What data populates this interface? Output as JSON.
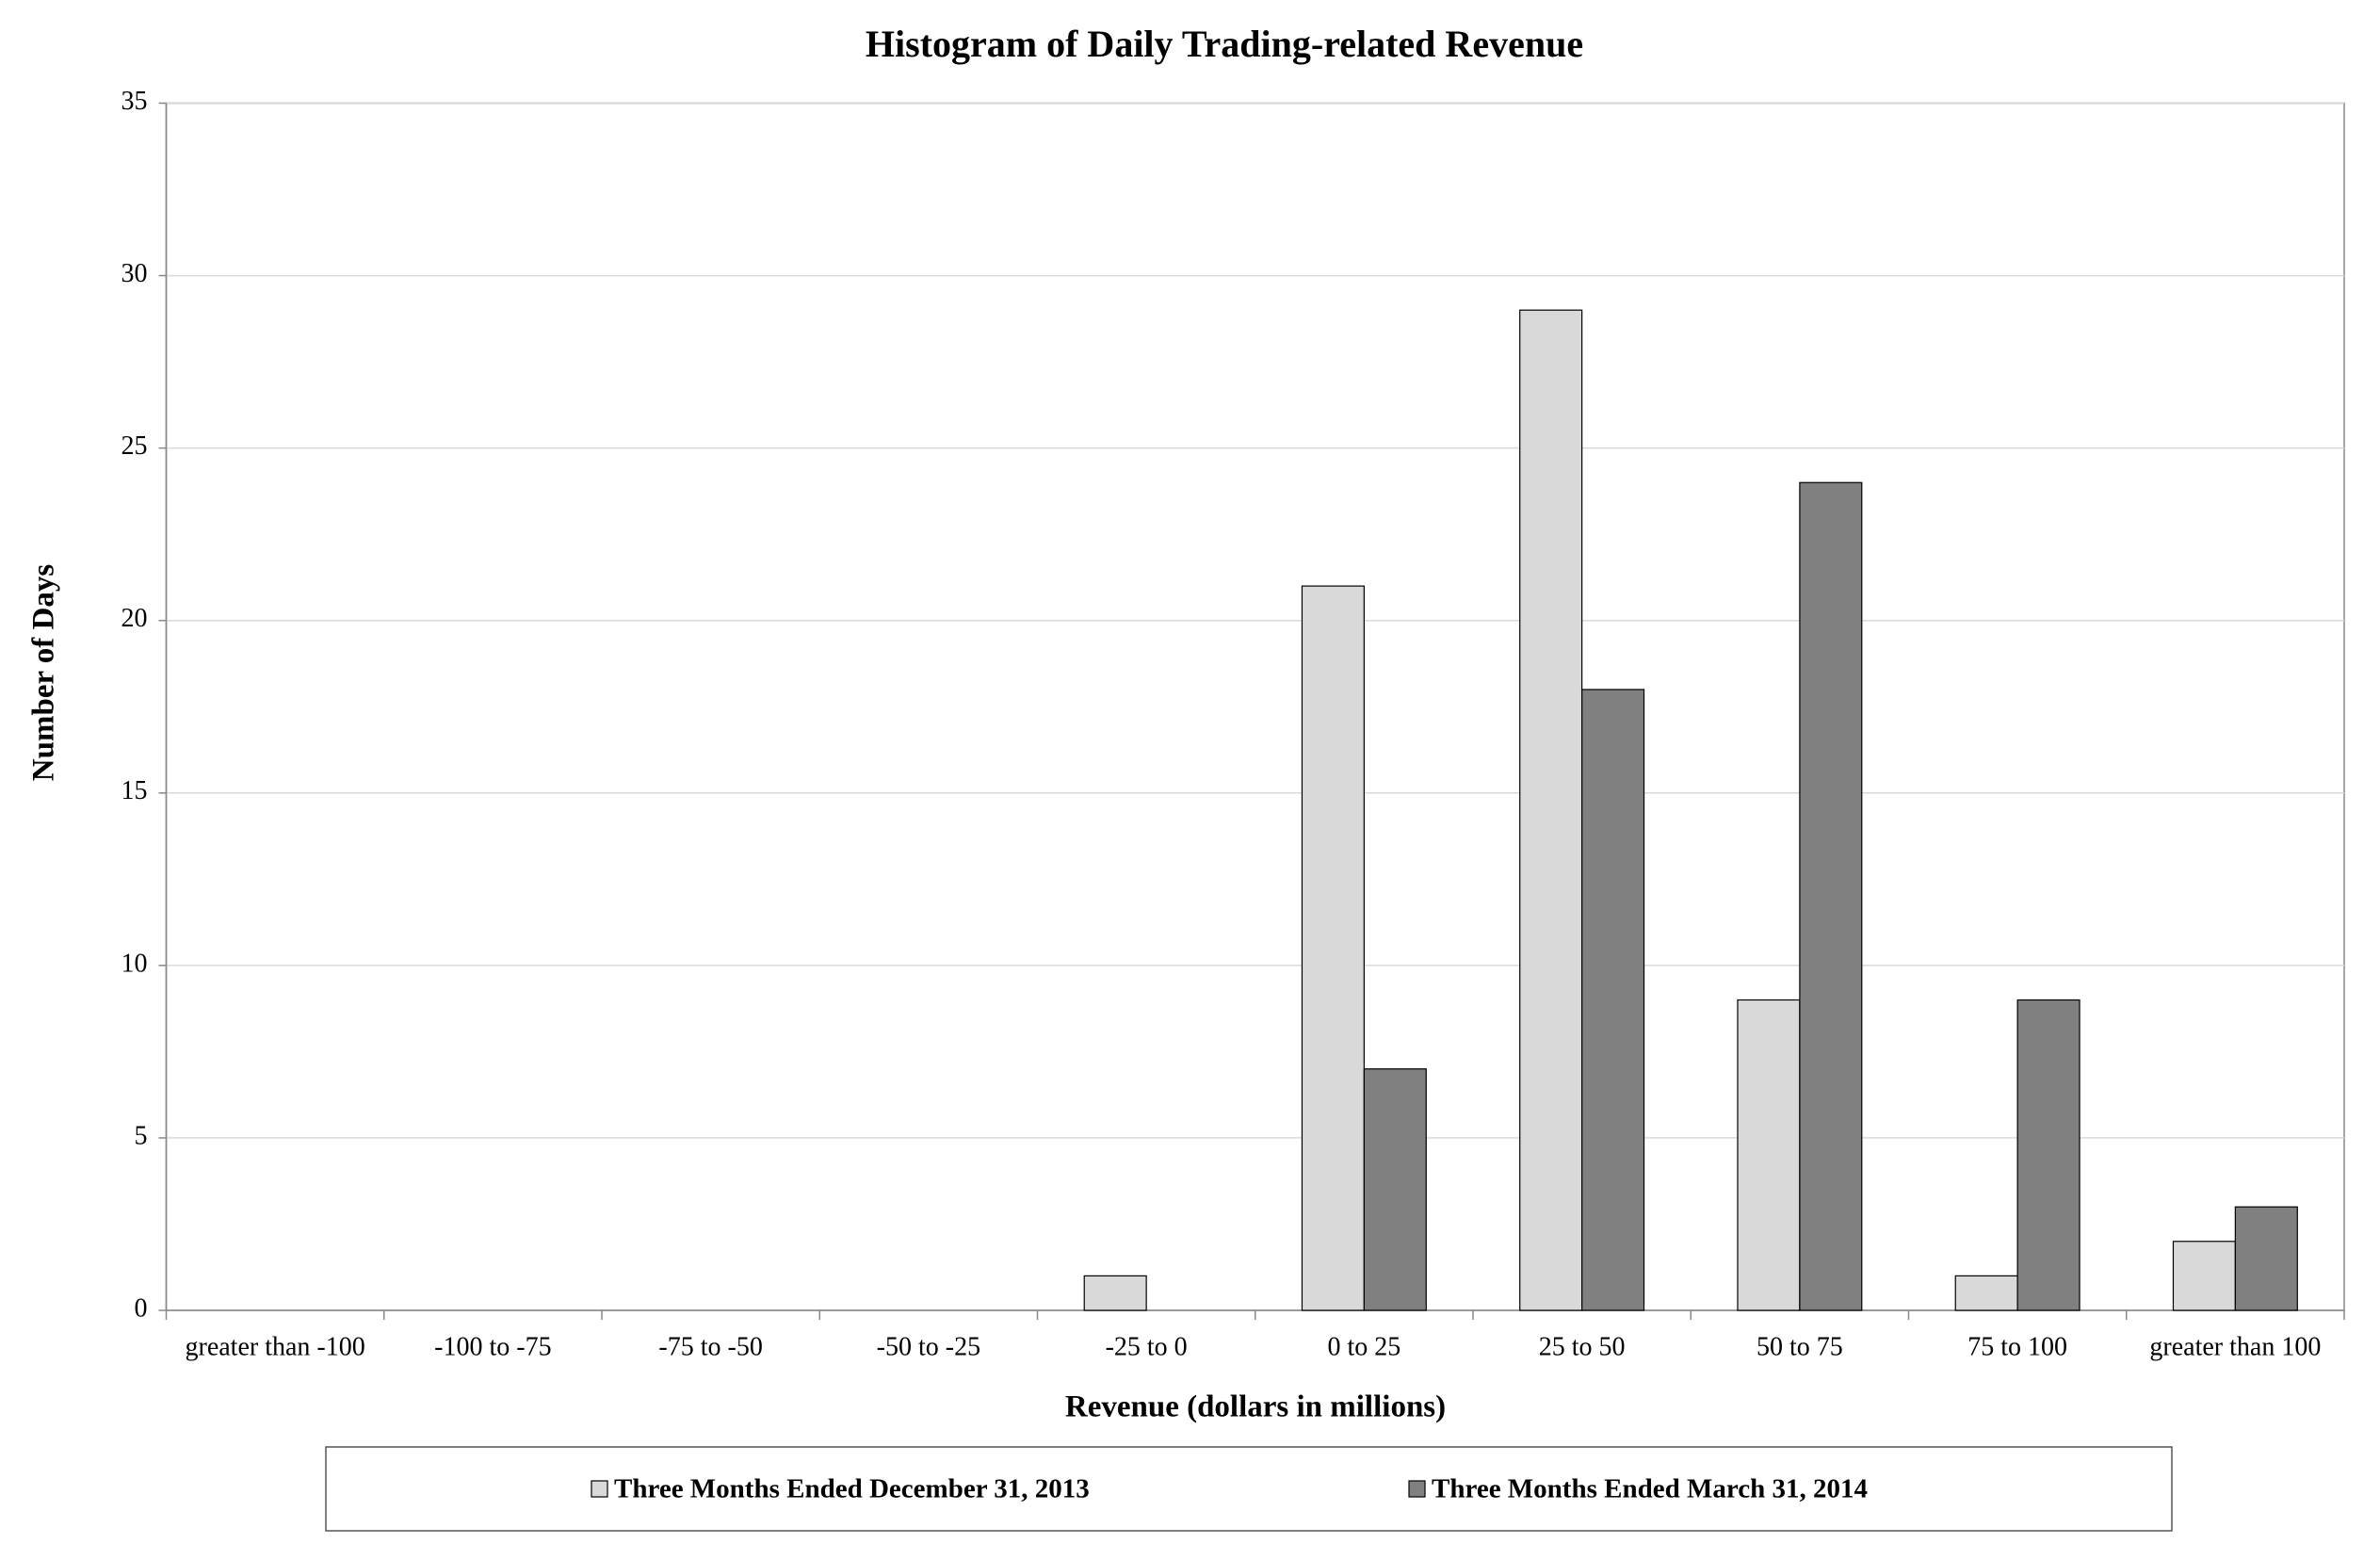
{
  "chart_data": {
    "type": "bar",
    "title": "Histogram of Daily Trading-related Revenue",
    "x_label": "Revenue (dollars in millions)",
    "y_label": "Number of Days",
    "categories": [
      "greater than -100",
      "-100 to -75",
      "-75 to -50",
      "-50 to -25",
      "-25 to 0",
      "0 to 25",
      "25 to 50",
      "50 to 75",
      "75 to 100",
      "greater than 100"
    ],
    "series": [
      {
        "name": "Three Months Ended December 31, 2013",
        "color": "#d9d9d9",
        "values": [
          0,
          0,
          0,
          0,
          1,
          21,
          29,
          9,
          1,
          2
        ]
      },
      {
        "name": "Three Months Ended March 31, 2014",
        "color": "#808080",
        "values": [
          0,
          0,
          0,
          0,
          0,
          7,
          18,
          24,
          9,
          3
        ]
      }
    ],
    "ylim": [
      0,
      35
    ],
    "yticks": [
      0,
      5,
      10,
      15,
      20,
      25,
      30,
      35
    ],
    "grid": true,
    "legend": "bottom"
  }
}
